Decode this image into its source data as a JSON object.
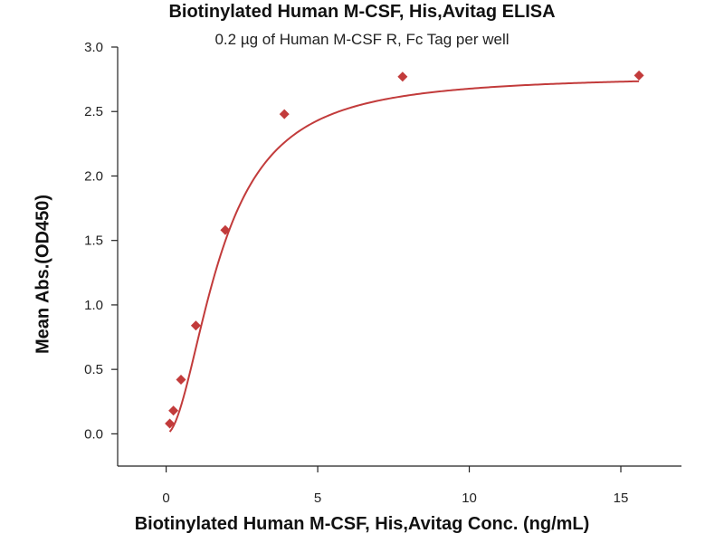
{
  "chart_data": {
    "type": "scatter",
    "title": "Biotinylated Human M-CSF, His,Avitag ELISA",
    "subtitle": "0.2 µg of Human M-CSF R, Fc Tag per well",
    "xlabel": "Biotinylated Human M-CSF, His,Avitag Conc. (ng/mL)",
    "ylabel": "Mean Abs.(OD450)",
    "xlim": [
      -1.6,
      17
    ],
    "ylim": [
      -0.25,
      3.0
    ],
    "xticks": [
      0,
      5,
      10,
      15
    ],
    "yticks": [
      0.0,
      0.5,
      1.0,
      1.5,
      2.0,
      2.5,
      3.0
    ],
    "xtick_labels": [
      "0",
      "5",
      "10",
      "15"
    ],
    "ytick_labels": [
      "0.0",
      "0.5",
      "1.0",
      "1.5",
      "2.0",
      "2.5",
      "3.0"
    ],
    "grid": false,
    "series": [
      {
        "marker": "diamond",
        "color": "#c23b3b",
        "x": [
          0.12,
          0.24,
          0.49,
          0.98,
          1.95,
          3.9,
          7.8,
          15.6
        ],
        "y": [
          0.08,
          0.18,
          0.42,
          0.84,
          1.58,
          2.48,
          2.77,
          2.78
        ]
      }
    ],
    "fit_curve": {
      "type": "4PL",
      "color": "#c23b3b",
      "bottom": 0.0,
      "top": 2.78,
      "ec50": 1.8,
      "hill": 1.9
    }
  }
}
